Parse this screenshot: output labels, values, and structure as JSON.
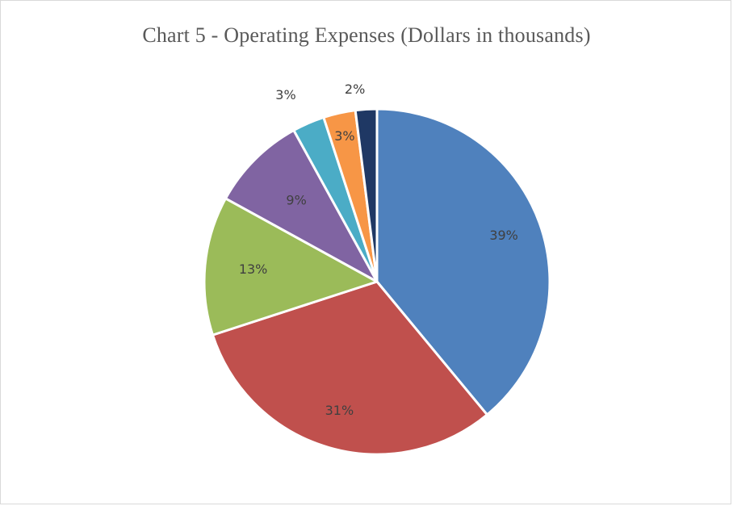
{
  "chart_data": {
    "type": "pie",
    "title": "Chart 5 - Operating Expenses (Dollars in thousands)",
    "slices": [
      {
        "value": 39,
        "label": "39%",
        "color": "#4F81BD"
      },
      {
        "value": 31,
        "label": "31%",
        "color": "#C0504D"
      },
      {
        "value": 13,
        "label": "13%",
        "color": "#9BBB59"
      },
      {
        "value": 9,
        "label": "9%",
        "color": "#8064A2"
      },
      {
        "value": 3,
        "label": "3%",
        "color": "#4BACC6"
      },
      {
        "value": 3,
        "label": "3%",
        "color": "#F79646"
      },
      {
        "value": 2,
        "label": "2%",
        "color": "#1F3864"
      }
    ],
    "start_angle": "12 o'clock",
    "direction": "clockwise",
    "legend": "none"
  }
}
